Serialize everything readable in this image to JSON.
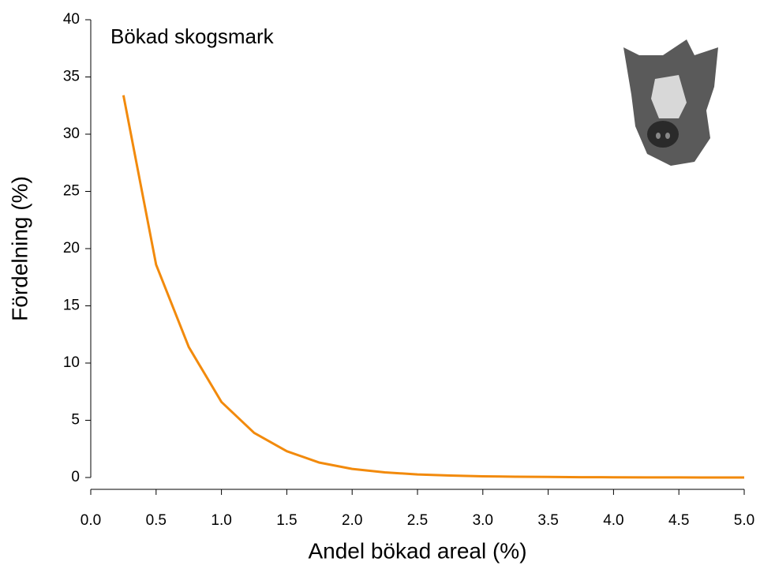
{
  "chart_data": {
    "type": "line",
    "title": "Bökad skogsmark",
    "xlabel": "Andel bökad areal (%)",
    "ylabel": "Fördelning (%)",
    "x": [
      0.25,
      0.5,
      0.75,
      1.0,
      1.25,
      1.5,
      1.75,
      2.0,
      2.25,
      2.5,
      2.75,
      3.0,
      3.25,
      3.5,
      3.75,
      4.0,
      4.25,
      4.5,
      4.75,
      5.0
    ],
    "values": [
      33.4,
      18.6,
      11.4,
      6.6,
      3.9,
      2.3,
      1.3,
      0.75,
      0.45,
      0.27,
      0.17,
      0.1,
      0.07,
      0.05,
      0.03,
      0.02,
      0.01,
      0.01,
      0.0,
      0.0
    ],
    "color": "#f28a0c",
    "xlim": [
      0,
      5
    ],
    "ylim": [
      0,
      40
    ],
    "xticks": [
      {
        "value": 0,
        "label": "0.0"
      },
      0.5,
      {
        "value": 1,
        "label": "1.0"
      },
      1.5,
      {
        "value": 2,
        "label": "2.0"
      },
      2.5,
      {
        "value": 3,
        "label": "3.0"
      },
      3.5,
      {
        "value": 4,
        "label": "4.0"
      },
      4.5,
      {
        "value": 5,
        "label": "5.0"
      }
    ],
    "yticks": [
      0,
      5,
      10,
      15,
      20,
      25,
      30,
      35,
      40
    ]
  }
}
